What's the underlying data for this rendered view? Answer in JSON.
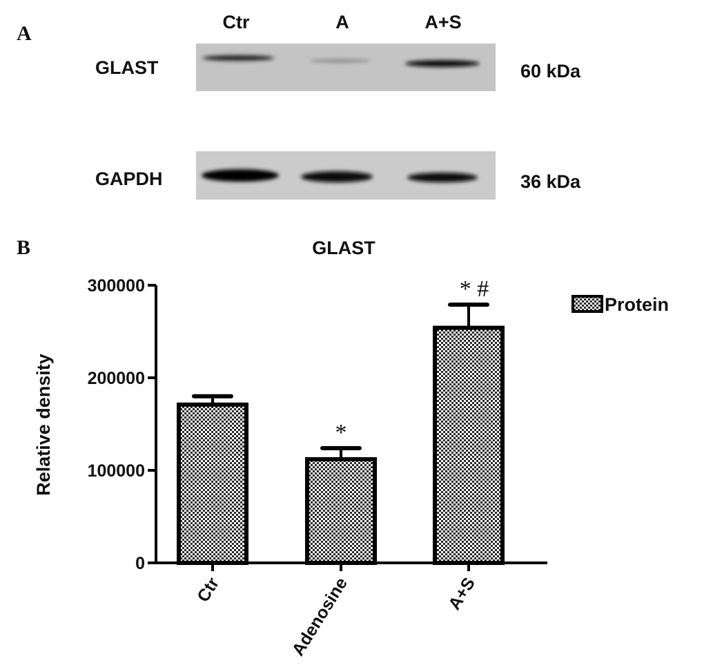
{
  "panels": {
    "a": "A",
    "b": "B"
  },
  "blot": {
    "lanes": [
      "Ctr",
      "A",
      "A+S"
    ],
    "rows": [
      {
        "protein": "GLAST",
        "size": "60 kDa"
      },
      {
        "protein": "GAPDH",
        "size": "36 kDa"
      }
    ]
  },
  "chart_data": {
    "type": "bar",
    "title": "GLAST",
    "xlabel": "",
    "ylabel": "Relative density",
    "ylim": [
      0,
      300000
    ],
    "yticks": [
      0,
      100000,
      200000,
      300000
    ],
    "ytick_labels": [
      "0",
      "100000",
      "200000",
      "300000"
    ],
    "categories": [
      "Ctr",
      "Adenosine",
      "A+S"
    ],
    "series": [
      {
        "name": "Protein",
        "values": [
          171000,
          112000,
          254000
        ],
        "error": [
          9000,
          12000,
          25000
        ]
      }
    ],
    "annotations": [
      "",
      "*",
      "* #"
    ],
    "legend": "top-right",
    "grid": false,
    "fill_pattern": "checkerboard",
    "colors": {
      "bar_edge": "#000000",
      "pattern_dark": "#222222",
      "pattern_light": "#ffffff"
    }
  }
}
